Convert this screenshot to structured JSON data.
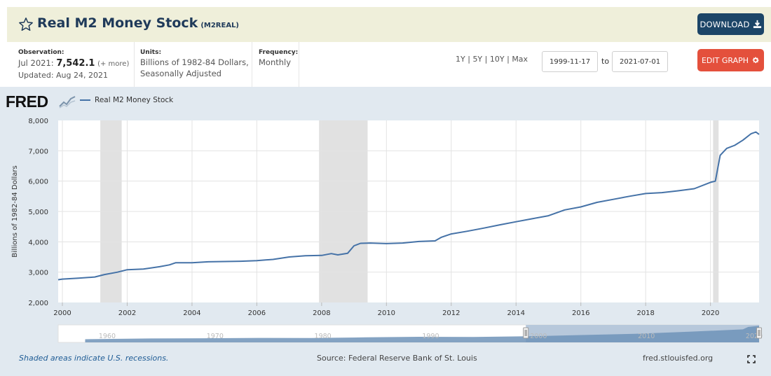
{
  "header": {
    "title": "Real M2 Money Stock",
    "series_id": "(M2REAL)",
    "download_label": "DOWNLOAD"
  },
  "meta": {
    "observation_label": "Observation:",
    "observation_date": "Jul 2021:",
    "observation_value": "7,542.1",
    "observation_more": "(+ more)",
    "updated": "Updated: Aug 24, 2021",
    "units_label": "Units:",
    "units_line1": "Billions of 1982-84 Dollars,",
    "units_line2": "Seasonally Adjusted",
    "frequency_label": "Frequency:",
    "frequency": "Monthly"
  },
  "controls": {
    "range_1y": "1Y",
    "range_5y": "5Y",
    "range_10y": "10Y",
    "range_max": "Max",
    "separator": "|",
    "start_date": "1999-11-17",
    "to_label": "to",
    "end_date": "2021-07-01",
    "edit_label": "EDIT GRAPH"
  },
  "brand": {
    "logo": "FRED",
    "line_color": "#4572a7",
    "recession_color": "#e1e1e1"
  },
  "footer": {
    "note": "Shaded areas indicate U.S. recessions.",
    "source": "Source: Federal Reserve Bank of St. Louis",
    "site": "fred.stlouisfed.org"
  },
  "chart_data": {
    "type": "line",
    "title": "Real M2 Money Stock",
    "ylabel": "Billions of 1982-84 Dollars",
    "xlabel": "",
    "xlim": [
      1999.87,
      2021.5
    ],
    "ylim": [
      2000,
      8000
    ],
    "yticks": [
      2000,
      3000,
      4000,
      5000,
      6000,
      7000,
      8000
    ],
    "ytick_labels": [
      "2,000",
      "3,000",
      "4,000",
      "5,000",
      "6,000",
      "7,000",
      "8,000"
    ],
    "xticks": [
      2000,
      2002,
      2004,
      2006,
      2008,
      2010,
      2012,
      2014,
      2016,
      2018,
      2020
    ],
    "xtick_labels": [
      "2000",
      "2002",
      "2004",
      "2006",
      "2008",
      "2010",
      "2012",
      "2014",
      "2016",
      "2018",
      "2020"
    ],
    "legend": "Real M2 Money Stock",
    "legend_position": "top-left",
    "grid": true,
    "recessions": [
      [
        2001.17,
        2001.83
      ],
      [
        2007.92,
        2009.42
      ],
      [
        2020.08,
        2020.25
      ]
    ],
    "series": [
      {
        "name": "Real M2 Money Stock",
        "x": [
          1999.87,
          2000.0,
          2000.5,
          2001.0,
          2001.3,
          2001.7,
          2002.0,
          2002.5,
          2003.0,
          2003.3,
          2003.5,
          2004.0,
          2004.5,
          2005.0,
          2005.5,
          2006.0,
          2006.5,
          2007.0,
          2007.5,
          2008.0,
          2008.3,
          2008.5,
          2008.8,
          2009.0,
          2009.2,
          2009.5,
          2010.0,
          2010.5,
          2011.0,
          2011.5,
          2011.7,
          2012.0,
          2012.5,
          2013.0,
          2013.5,
          2014.0,
          2014.5,
          2015.0,
          2015.5,
          2016.0,
          2016.5,
          2017.0,
          2017.5,
          2018.0,
          2018.5,
          2019.0,
          2019.5,
          2020.0,
          2020.15,
          2020.3,
          2020.5,
          2020.75,
          2021.0,
          2021.25,
          2021.4,
          2021.5
        ],
        "values": [
          2750,
          2770,
          2800,
          2840,
          2920,
          3000,
          3080,
          3100,
          3180,
          3240,
          3310,
          3310,
          3340,
          3350,
          3360,
          3380,
          3420,
          3500,
          3540,
          3550,
          3610,
          3570,
          3620,
          3870,
          3950,
          3960,
          3940,
          3960,
          4010,
          4030,
          4150,
          4260,
          4350,
          4450,
          4560,
          4660,
          4760,
          4860,
          5050,
          5150,
          5300,
          5400,
          5500,
          5590,
          5620,
          5680,
          5750,
          5960,
          6000,
          6850,
          7080,
          7180,
          7350,
          7560,
          7620,
          7540
        ]
      }
    ],
    "navigator": {
      "xticks": [
        1960,
        1970,
        1980,
        1990,
        2000,
        2010,
        2020
      ],
      "xtick_labels": [
        "1960",
        "1970",
        "1980",
        "1990",
        "2000",
        "2010",
        "2020"
      ],
      "xlim": [
        1956.5,
        2021.5
      ],
      "selected": [
        1999.87,
        2021.5
      ],
      "series_x": [
        1959,
        1965,
        1970,
        1975,
        1980,
        1985,
        1990,
        1995,
        2000,
        2005,
        2010,
        2015,
        2020,
        2020.5,
        2021.5
      ],
      "series_values": [
        1450,
        1800,
        1900,
        2050,
        2000,
        2300,
        2550,
        2450,
        2770,
        3350,
        3940,
        4860,
        5960,
        7080,
        7540
      ],
      "ylim": [
        0,
        8000
      ]
    }
  }
}
